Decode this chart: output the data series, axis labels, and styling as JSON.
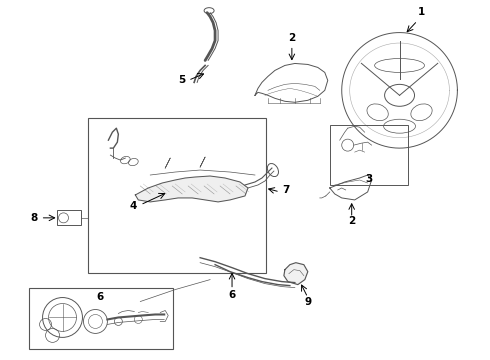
{
  "bg_color": "#ffffff",
  "line_color": "#555555",
  "label_color": "#000000",
  "fig_width": 4.9,
  "fig_height": 3.6,
  "dpi": 100
}
